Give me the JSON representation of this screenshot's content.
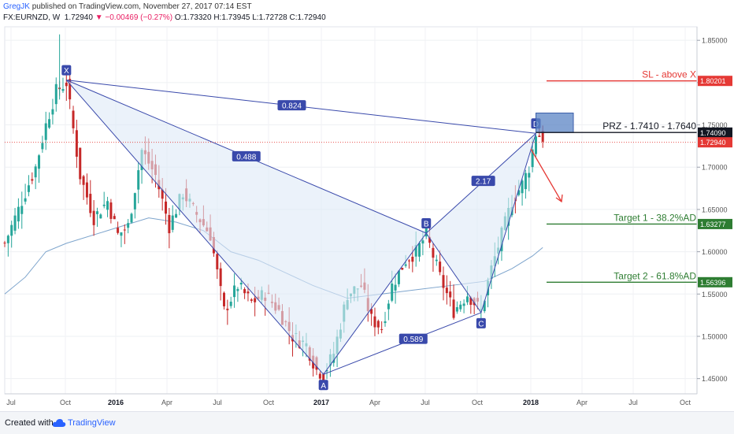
{
  "header": {
    "author": "GregJK",
    "published": "published on TradingView.com, November 27, 2017 07:14 EST",
    "symbol": "FX:EURNZD, W",
    "last": "1.72940",
    "change": "−0.00469 (−0.27%)",
    "open": "O:1.73320",
    "high": "H:1.73945",
    "low": "L:1.72728",
    "close": "C:1.72940"
  },
  "footer": {
    "created": "Created with",
    "brand": "TradingView"
  },
  "colors": {
    "up": "#26a69a",
    "down": "#c62828",
    "pattern": "#3949ab",
    "pattern_fill": "#dde9f7",
    "ma": "#5c8dbf",
    "sl": "#e53935",
    "target": "#2e7d32",
    "prz": "#5b84c4",
    "arrow": "#e53935"
  },
  "chart_data": {
    "type": "candlestick",
    "y_axis": {
      "ticks": [
        "1.85000",
        "1.80000",
        "1.75000",
        "1.70000",
        "1.65000",
        "1.60000",
        "1.55000",
        "1.50000",
        "1.45000"
      ],
      "range": [
        1.42,
        1.88
      ]
    },
    "x_axis": {
      "ticks": [
        "Jul",
        "Oct",
        "2016",
        "Apr",
        "Jul",
        "Oct",
        "2017",
        "Apr",
        "Jul",
        "Oct",
        "2018",
        "Apr",
        "Jul",
        "Oct"
      ]
    },
    "price_labels": [
      {
        "value": 1.80201,
        "text": "1.80201",
        "color": "#e53935"
      },
      {
        "value": 1.7409,
        "text": "1.74090",
        "color": "#131722"
      },
      {
        "value": 1.7294,
        "text": "1.72940",
        "color": "#e53935"
      },
      {
        "value": 1.63277,
        "text": "1.63277",
        "color": "#2e7d32"
      },
      {
        "value": 1.56396,
        "text": "1.56396",
        "color": "#2e7d32"
      }
    ],
    "pattern": {
      "points": [
        {
          "label": "X",
          "week": 18,
          "price": 1.803
        },
        {
          "label": "A",
          "week": 93,
          "price": 1.455
        },
        {
          "label": "B",
          "week": 123,
          "price": 1.622
        },
        {
          "label": "C",
          "week": 139,
          "price": 1.528
        },
        {
          "label": "D",
          "week": 155,
          "price": 1.74
        }
      ],
      "ratios": [
        {
          "text": "0.824",
          "near": "XD"
        },
        {
          "text": "0.488",
          "near": "XB"
        },
        {
          "text": "2.17",
          "near": "BD"
        },
        {
          "text": "0.589",
          "near": "AC"
        }
      ]
    },
    "levels": [
      {
        "label": "SL - above X",
        "price": 1.80201
      },
      {
        "label": "PRZ - 1.7410 - 1.7640",
        "price": 1.741
      },
      {
        "label": "Target 1 - 38.2%AD",
        "price": 1.63277
      },
      {
        "label": "Target 2 - 61.8%AD",
        "price": 1.56396
      }
    ],
    "prz_zone": {
      "low": 1.741,
      "high": 1.764
    },
    "last_price": 1.7294,
    "anchors": [
      {
        "week": 0,
        "price": 1.61
      },
      {
        "week": 3,
        "price": 1.64
      },
      {
        "week": 6,
        "price": 1.67
      },
      {
        "week": 9,
        "price": 1.7
      },
      {
        "week": 12,
        "price": 1.75
      },
      {
        "week": 15,
        "price": 1.79
      },
      {
        "week": 18,
        "price": 1.8
      },
      {
        "week": 22,
        "price": 1.69
      },
      {
        "week": 26,
        "price": 1.64
      },
      {
        "week": 30,
        "price": 1.66
      },
      {
        "week": 33,
        "price": 1.62
      },
      {
        "week": 36,
        "price": 1.63
      },
      {
        "week": 40,
        "price": 1.72
      },
      {
        "week": 44,
        "price": 1.69
      },
      {
        "week": 48,
        "price": 1.63
      },
      {
        "week": 52,
        "price": 1.67
      },
      {
        "week": 55,
        "price": 1.65
      },
      {
        "week": 60,
        "price": 1.62
      },
      {
        "week": 64,
        "price": 1.53
      },
      {
        "week": 68,
        "price": 1.56
      },
      {
        "week": 72,
        "price": 1.54
      },
      {
        "week": 76,
        "price": 1.55
      },
      {
        "week": 80,
        "price": 1.53
      },
      {
        "week": 84,
        "price": 1.5
      },
      {
        "week": 88,
        "price": 1.49
      },
      {
        "week": 91,
        "price": 1.46
      },
      {
        "week": 93,
        "price": 1.455
      },
      {
        "week": 96,
        "price": 1.48
      },
      {
        "week": 100,
        "price": 1.55
      },
      {
        "week": 104,
        "price": 1.56
      },
      {
        "week": 107,
        "price": 1.52
      },
      {
        "week": 110,
        "price": 1.51
      },
      {
        "week": 113,
        "price": 1.56
      },
      {
        "week": 117,
        "price": 1.59
      },
      {
        "week": 120,
        "price": 1.6
      },
      {
        "week": 123,
        "price": 1.62
      },
      {
        "week": 127,
        "price": 1.57
      },
      {
        "week": 131,
        "price": 1.53
      },
      {
        "week": 135,
        "price": 1.55
      },
      {
        "week": 139,
        "price": 1.53
      },
      {
        "week": 142,
        "price": 1.58
      },
      {
        "week": 145,
        "price": 1.62
      },
      {
        "week": 148,
        "price": 1.66
      },
      {
        "week": 151,
        "price": 1.68
      },
      {
        "week": 153,
        "price": 1.7
      },
      {
        "week": 155,
        "price": 1.74
      },
      {
        "week": 157,
        "price": 1.735
      }
    ],
    "ma": [
      {
        "week": 0,
        "price": 1.55
      },
      {
        "week": 6,
        "price": 1.57
      },
      {
        "week": 12,
        "price": 1.6
      },
      {
        "week": 18,
        "price": 1.61
      },
      {
        "week": 30,
        "price": 1.625
      },
      {
        "week": 42,
        "price": 1.64
      },
      {
        "week": 50,
        "price": 1.635
      },
      {
        "week": 58,
        "price": 1.625
      },
      {
        "week": 66,
        "price": 1.6
      },
      {
        "week": 74,
        "price": 1.59
      },
      {
        "week": 82,
        "price": 1.575
      },
      {
        "week": 90,
        "price": 1.56
      },
      {
        "week": 100,
        "price": 1.545
      },
      {
        "week": 110,
        "price": 1.55
      },
      {
        "week": 120,
        "price": 1.555
      },
      {
        "week": 130,
        "price": 1.56
      },
      {
        "week": 140,
        "price": 1.565
      },
      {
        "week": 148,
        "price": 1.58
      },
      {
        "week": 154,
        "price": 1.595
      },
      {
        "week": 157,
        "price": 1.605
      }
    ]
  }
}
